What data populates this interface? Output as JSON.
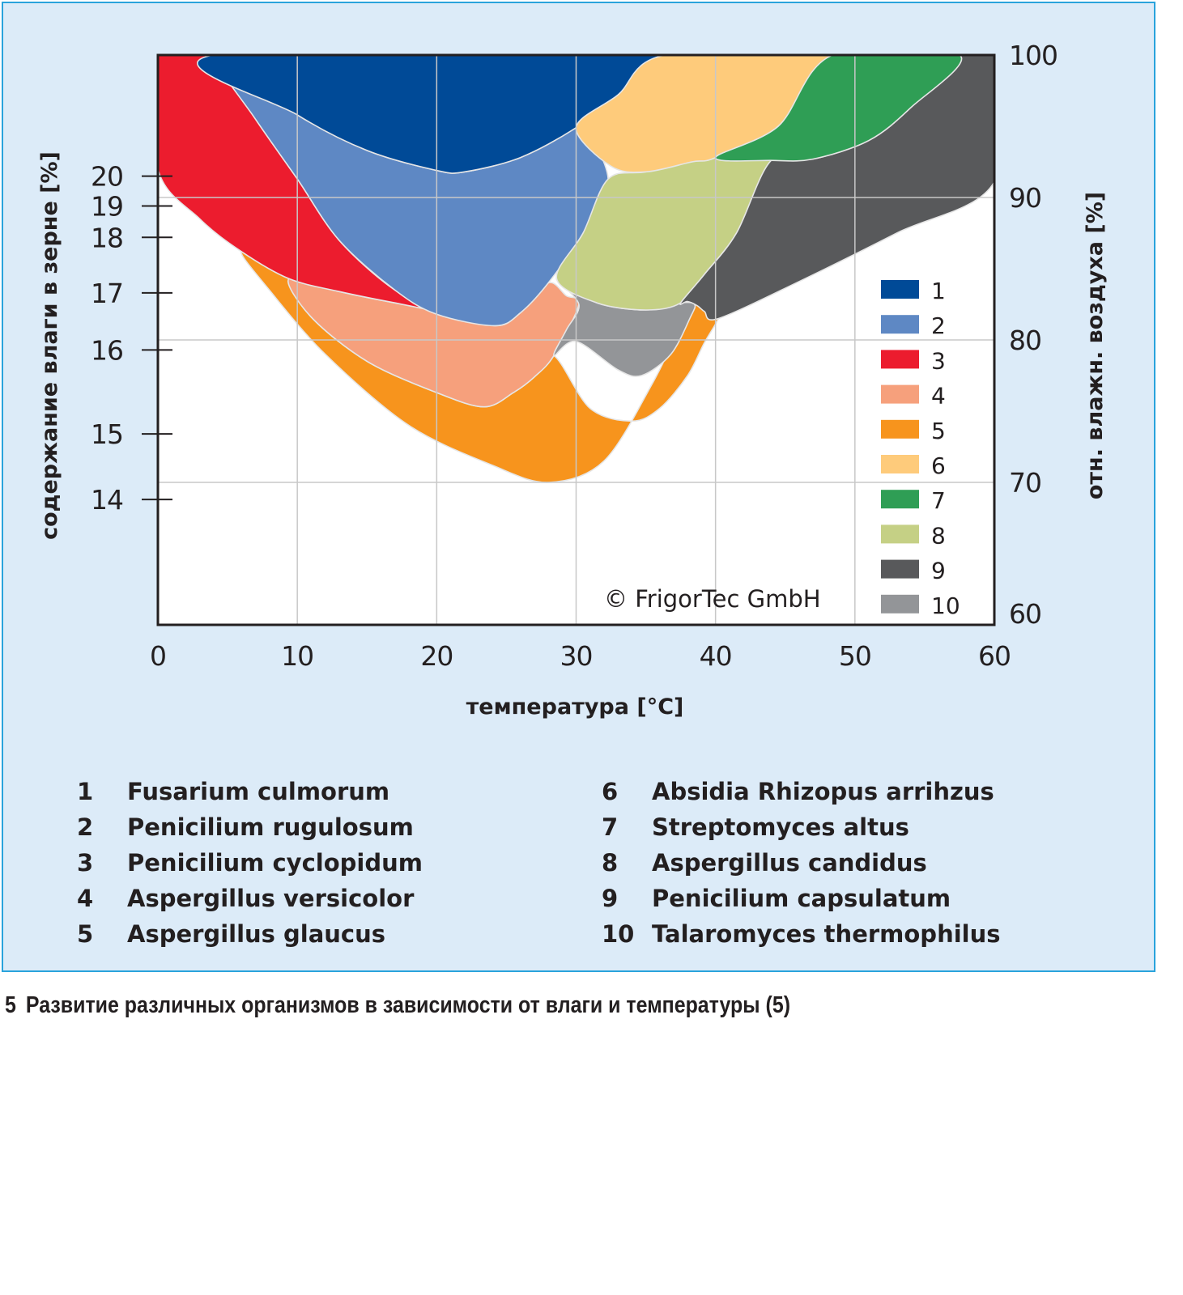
{
  "chart_data": {
    "type": "area",
    "title": "",
    "xlabel": "температура [°C]",
    "ylabel_left": "содержание влаги в зерне [%]",
    "ylabel_right": "отн. влажн. воздуха [%]",
    "xlim": [
      0,
      60
    ],
    "ylim_right": [
      60,
      100
    ],
    "x_ticks": [
      "0",
      "10",
      "20",
      "30",
      "40",
      "50",
      "60"
    ],
    "x_tick_values": [
      0,
      10,
      20,
      30,
      40,
      50,
      60
    ],
    "right_ticks": [
      "100",
      "90",
      "80",
      "70",
      "60"
    ],
    "right_tick_values": [
      100,
      90,
      80,
      70,
      60
    ],
    "left_ticks": [
      {
        "label": "20",
        "rh": 91.5
      },
      {
        "label": "19",
        "rh": 89.4
      },
      {
        "label": "18",
        "rh": 87.2
      },
      {
        "label": "17",
        "rh": 83.3
      },
      {
        "label": "16",
        "rh": 79.3
      },
      {
        "label": "15",
        "rh": 73.4
      },
      {
        "label": "14",
        "rh": 68.8
      }
    ],
    "grid": true,
    "legend_position": "right",
    "annotation": "© FrigorTec GmbH",
    "series": [
      {
        "id": "1",
        "name": "Fusarium culmorum",
        "color": "#004a97",
        "outline": [
          [
            4,
            100
          ],
          [
            10,
            95.8
          ],
          [
            15,
            93.3
          ],
          [
            20,
            91.9
          ],
          [
            22,
            91.8
          ],
          [
            26,
            92.8
          ],
          [
            30,
            94.9
          ],
          [
            33,
            97.2
          ],
          [
            36.4,
            100
          ]
        ]
      },
      {
        "id": "2",
        "name": "Penicilium rugulosum",
        "color": "#5e88c4",
        "outline": [
          [
            4,
            100
          ],
          [
            7,
            95.5
          ],
          [
            10,
            91.3
          ],
          [
            13,
            87
          ],
          [
            17,
            83.5
          ],
          [
            20,
            81.8
          ],
          [
            24.2,
            81
          ],
          [
            26,
            81.9
          ],
          [
            28,
            84
          ],
          [
            30.5,
            87.5
          ],
          [
            32.3,
            91.3
          ],
          [
            30,
            94.9
          ],
          [
            26,
            92.8
          ],
          [
            22,
            91.8
          ],
          [
            20,
            91.9
          ],
          [
            15,
            93.3
          ],
          [
            10,
            95.8
          ]
        ]
      },
      {
        "id": "3",
        "name": "Penicilium cyclopidum",
        "color": "#ec1c2e",
        "outline": [
          [
            0,
            100
          ],
          [
            4,
            100
          ],
          [
            7,
            95.5
          ],
          [
            10,
            91.3
          ],
          [
            13,
            87
          ],
          [
            17,
            83.5
          ],
          [
            20.5,
            82
          ],
          [
            17,
            82.6
          ],
          [
            13,
            83.4
          ],
          [
            9.4,
            84.3
          ],
          [
            6,
            86.2
          ],
          [
            3,
            88.5
          ],
          [
            0,
            92
          ]
        ]
      },
      {
        "id": "4",
        "name": "Aspergillus versicolor",
        "color": "#f6a07c",
        "outline": [
          [
            9.4,
            84.3
          ],
          [
            13,
            83.4
          ],
          [
            17,
            82.6
          ],
          [
            20.5,
            82
          ],
          [
            24.2,
            81
          ],
          [
            26,
            81.9
          ],
          [
            28,
            84
          ],
          [
            29.3,
            83.1
          ],
          [
            30.2,
            82.5
          ],
          [
            28.4,
            78.9
          ],
          [
            27,
            77.4
          ],
          [
            25.5,
            76.3
          ],
          [
            23.4,
            75.3
          ],
          [
            20,
            76.3
          ],
          [
            15,
            78.5
          ],
          [
            11,
            81.6
          ]
        ]
      },
      {
        "id": "5",
        "name": "Aspergillus glaucus",
        "color": "#f7941d",
        "outline": [
          [
            6,
            86.2
          ],
          [
            9.4,
            84.3
          ],
          [
            11,
            81.6
          ],
          [
            15,
            78.5
          ],
          [
            20,
            76.3
          ],
          [
            23.4,
            75.3
          ],
          [
            25.5,
            76.3
          ],
          [
            27,
            77.4
          ],
          [
            28.4,
            78.9
          ],
          [
            31,
            75.2
          ],
          [
            34,
            74.3
          ],
          [
            36,
            75.2
          ],
          [
            38,
            77.5
          ],
          [
            39.2,
            79.8
          ],
          [
            40.2,
            81.5
          ],
          [
            40,
            82
          ],
          [
            38.5,
            82.5
          ],
          [
            37.5,
            81
          ],
          [
            35.5,
            77
          ],
          [
            32,
            71.5
          ],
          [
            28,
            70
          ],
          [
            24,
            71.2
          ],
          [
            18,
            74
          ],
          [
            12,
            79
          ],
          [
            8,
            83.5
          ]
        ]
      },
      {
        "id": "6",
        "name": "Absidia Rhizopus arrihzus",
        "color": "#fecb7b",
        "outline": [
          [
            36.4,
            100
          ],
          [
            48.4,
            100
          ],
          [
            44.5,
            95
          ],
          [
            40,
            92.8
          ],
          [
            38.3,
            92.5
          ],
          [
            35,
            91.8
          ],
          [
            32.5,
            92.2
          ],
          [
            30,
            94.9
          ],
          [
            33,
            97.2
          ]
        ]
      },
      {
        "id": "7",
        "name": "Streptomyces altus",
        "color": "#2f9e55",
        "outline": [
          [
            48.4,
            100
          ],
          [
            57.5,
            100
          ],
          [
            54,
            96.3
          ],
          [
            51,
            94
          ],
          [
            47,
            92.7
          ],
          [
            44,
            92.6
          ],
          [
            40,
            92.8
          ],
          [
            44.5,
            95
          ]
        ]
      },
      {
        "id": "8",
        "name": "Aspergillus candidus",
        "color": "#c5d085",
        "outline": [
          [
            32.3,
            91.3
          ],
          [
            35,
            91.8
          ],
          [
            38.3,
            92.5
          ],
          [
            40,
            92.8
          ],
          [
            44,
            92.6
          ],
          [
            41.5,
            87.5
          ],
          [
            39.2,
            84.6
          ],
          [
            37.5,
            82.6
          ],
          [
            35,
            82.1
          ],
          [
            31.5,
            82.6
          ],
          [
            28.6,
            84.3
          ],
          [
            30.5,
            87.5
          ]
        ]
      },
      {
        "id": "9",
        "name": "Penicilium capsulatum",
        "color": "#58595b",
        "outline": [
          [
            57.5,
            100
          ],
          [
            60,
            100
          ],
          [
            60,
            91.1
          ],
          [
            53,
            87.5
          ],
          [
            46,
            84.1
          ],
          [
            40.2,
            81.5
          ],
          [
            39.2,
            82
          ],
          [
            38.7,
            82.4
          ],
          [
            38,
            82.7
          ],
          [
            37.5,
            82.6
          ],
          [
            39.2,
            84.6
          ],
          [
            41.5,
            87.5
          ],
          [
            44,
            92.6
          ],
          [
            47,
            92.7
          ],
          [
            51,
            94
          ],
          [
            54,
            96.3
          ]
        ]
      },
      {
        "id": "10",
        "name": "Talaromyces thermophilus",
        "color": "#939598",
        "outline": [
          [
            28.6,
            84.3
          ],
          [
            31.5,
            82.6
          ],
          [
            35,
            82.1
          ],
          [
            37.5,
            82.6
          ],
          [
            38.5,
            82.5
          ],
          [
            38.2,
            81.6
          ],
          [
            36.8,
            79
          ],
          [
            34.7,
            77.5
          ],
          [
            33,
            77.9
          ],
          [
            30,
            79.9
          ],
          [
            28.4,
            78.9
          ],
          [
            29.3,
            80.7
          ],
          [
            30.2,
            82.5
          ]
        ]
      }
    ]
  },
  "legend_list": {
    "left": [
      {
        "num": "1",
        "name": "Fusarium culmorum"
      },
      {
        "num": "2",
        "name": "Penicilium rugulosum"
      },
      {
        "num": "3",
        "name": "Penicilium cyclopidum"
      },
      {
        "num": "4",
        "name": "Aspergillus versicolor"
      },
      {
        "num": "5",
        "name": "Aspergillus glaucus"
      }
    ],
    "right": [
      {
        "num": "6",
        "name": "Absidia Rhizopus arrihzus"
      },
      {
        "num": "7",
        "name": "Streptomyces altus"
      },
      {
        "num": "8",
        "name": "Aspergillus candidus"
      },
      {
        "num": "9",
        "name": "Penicilium capsulatum"
      },
      {
        "num": "10",
        "name": "Talaromyces thermophilus"
      }
    ]
  },
  "caption": {
    "number": "5",
    "text": "Развитие различных организмов в зависимости от влаги и температуры (5)"
  },
  "colors": {
    "panel_bg": "#dcebf8",
    "panel_border": "#29a3dc",
    "grid": "#c8c8c8",
    "axis": "#231f20"
  }
}
